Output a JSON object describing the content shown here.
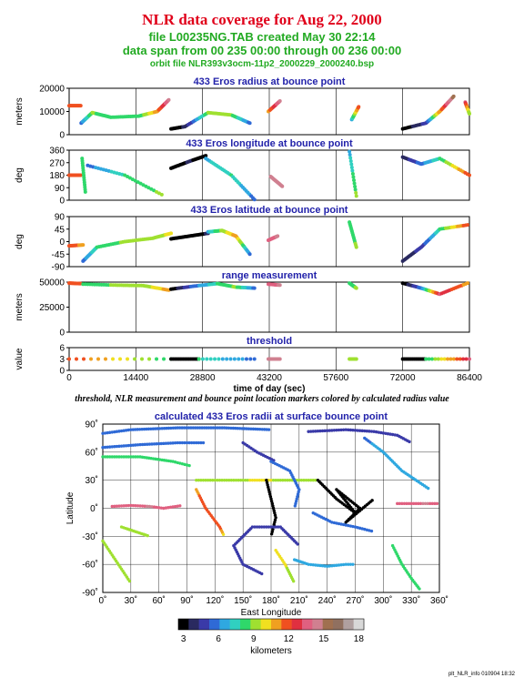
{
  "header": {
    "title": "NLR data coverage for Aug 22, 2000",
    "file_line": "file L00235NG.TAB created May 30 22:14",
    "span_line": "data span from 00 235 00:00 through 00 236 00:00",
    "orbit_line": "orbit file NLR393v3ocm-11p2_2000229_2000240.bsp",
    "title_color": "#e0001a",
    "subtitle_color": "#22aa22",
    "panel_title_color": "#2222aa"
  },
  "note": "threshold, NLR measurement and bounce point location markers colored by calculated radius value",
  "footer": "plt_NLR_info 010904 18:32",
  "chart_data": [
    {
      "type": "scatter",
      "title": "433 Eros radius at bounce point",
      "ylabel": "meters",
      "ylim": [
        0,
        20000
      ],
      "yticks": [
        0,
        10000,
        20000
      ],
      "ytick_labels": [
        "0",
        "10000",
        "20000"
      ],
      "xlim": [
        0,
        86400
      ],
      "segments": [
        {
          "x": [
            0,
            2500
          ],
          "y": [
            12500,
            12500
          ],
          "r": [
            12,
            12
          ]
        },
        {
          "x": [
            2600,
            5000,
            9000,
            15000,
            19000,
            21500
          ],
          "y": [
            5000,
            9500,
            7500,
            8000,
            10000,
            15000
          ],
          "r": [
            6,
            9,
            8,
            8,
            11,
            14
          ]
        },
        {
          "x": [
            22000,
            25000,
            30000,
            35000,
            39000
          ],
          "y": [
            2500,
            3500,
            9500,
            8500,
            5000
          ],
          "r": [
            3,
            4,
            9,
            9,
            6
          ]
        },
        {
          "x": [
            43000,
            45500
          ],
          "y": [
            10000,
            14500
          ],
          "r": [
            11,
            14
          ]
        },
        {
          "x": [
            61000,
            62500
          ],
          "y": [
            6500,
            12000
          ],
          "r": [
            7,
            12
          ]
        },
        {
          "x": [
            72000,
            77000,
            80000,
            83000
          ],
          "y": [
            2500,
            5000,
            10000,
            16500
          ],
          "r": [
            3,
            5,
            11,
            15
          ]
        },
        {
          "x": [
            85500,
            86400
          ],
          "y": [
            14000,
            9000
          ],
          "r": [
            13,
            9
          ]
        }
      ]
    },
    {
      "type": "scatter",
      "title": "433 Eros longitude at bounce point",
      "ylabel": "deg",
      "ylim": [
        0,
        360
      ],
      "yticks": [
        0,
        90,
        180,
        270,
        360
      ],
      "ytick_labels": [
        "0",
        "90",
        "180",
        "270",
        "360"
      ],
      "xlim": [
        0,
        86400
      ],
      "segments": [
        {
          "x": [
            0,
            2500
          ],
          "y": [
            180,
            180
          ],
          "r": [
            12,
            12
          ]
        },
        {
          "x": [
            2800,
            3500
          ],
          "y": [
            300,
            60
          ],
          "r": [
            8,
            8
          ]
        },
        {
          "x": [
            4000,
            12000,
            20000
          ],
          "y": [
            250,
            180,
            40
          ],
          "r": [
            6,
            8,
            9
          ]
        },
        {
          "x": [
            22000,
            26000,
            29500
          ],
          "y": [
            230,
            280,
            320
          ],
          "r": [
            3,
            4,
            3
          ]
        },
        {
          "x": [
            29500,
            35000,
            40000
          ],
          "y": [
            300,
            180,
            5
          ],
          "r": [
            7,
            8,
            6
          ]
        },
        {
          "x": [
            43500,
            46000
          ],
          "y": [
            170,
            100
          ],
          "r": [
            14,
            14
          ]
        },
        {
          "x": [
            60500,
            62000
          ],
          "y": [
            350,
            30
          ],
          "r": [
            7,
            9
          ]
        },
        {
          "x": [
            72000,
            76000,
            80000,
            86400
          ],
          "y": [
            310,
            260,
            300,
            180
          ],
          "r": [
            4,
            6,
            8,
            12
          ]
        }
      ]
    },
    {
      "type": "scatter",
      "title": "433 Eros latitude at bounce point",
      "ylabel": "deg",
      "ylim": [
        -90,
        90
      ],
      "yticks": [
        -90,
        -45,
        0,
        45,
        90
      ],
      "ytick_labels": [
        "-90",
        "-45",
        "0",
        "45",
        "90"
      ],
      "xlim": [
        0,
        86400
      ],
      "segments": [
        {
          "x": [
            0,
            3000
          ],
          "y": [
            -15,
            -12
          ],
          "r": [
            12,
            11
          ]
        },
        {
          "x": [
            3000,
            6000,
            12000,
            18000,
            22000
          ],
          "y": [
            -70,
            -20,
            0,
            12,
            30
          ],
          "r": [
            6,
            8,
            9,
            9,
            10
          ]
        },
        {
          "x": [
            22000,
            26000,
            30000
          ],
          "y": [
            10,
            20,
            30
          ],
          "r": [
            3,
            3,
            4
          ]
        },
        {
          "x": [
            30000,
            33000,
            36000,
            39000
          ],
          "y": [
            35,
            40,
            20,
            -45
          ],
          "r": [
            7,
            9,
            11,
            6
          ]
        },
        {
          "x": [
            43000,
            45000
          ],
          "y": [
            5,
            20
          ],
          "r": [
            13,
            14
          ]
        },
        {
          "x": [
            60500,
            62000
          ],
          "y": [
            70,
            -20
          ],
          "r": [
            8,
            9
          ]
        },
        {
          "x": [
            72000,
            76000,
            80000,
            86000
          ],
          "y": [
            -70,
            -20,
            45,
            60
          ],
          "r": [
            4,
            5,
            8,
            12
          ]
        }
      ]
    },
    {
      "type": "scatter",
      "title": "range measurement",
      "ylabel": "meters",
      "ylim": [
        0,
        50000
      ],
      "yticks": [
        0,
        25000,
        50000
      ],
      "ytick_labels": [
        "0",
        "25000",
        "50000"
      ],
      "xlim": [
        0,
        86400
      ],
      "segments": [
        {
          "x": [
            0,
            2500
          ],
          "y": [
            49000,
            48500
          ],
          "r": [
            12,
            12
          ]
        },
        {
          "x": [
            3000,
            10000,
            16000,
            21500
          ],
          "y": [
            48000,
            47000,
            46500,
            42000
          ],
          "r": [
            8,
            9,
            9,
            11
          ]
        },
        {
          "x": [
            22000,
            27000,
            32000,
            36000,
            40000
          ],
          "y": [
            43000,
            46000,
            48500,
            45000,
            44000
          ],
          "r": [
            3,
            6,
            8,
            9,
            6
          ]
        },
        {
          "x": [
            43000,
            45500
          ],
          "y": [
            48000,
            47000
          ],
          "r": [
            13,
            14
          ]
        },
        {
          "x": [
            60500,
            62000
          ],
          "y": [
            49000,
            44000
          ],
          "r": [
            8,
            9
          ]
        },
        {
          "x": [
            72000,
            76000,
            80000,
            86000
          ],
          "y": [
            49000,
            44000,
            38000,
            49000
          ],
          "r": [
            3,
            6,
            13,
            11
          ]
        }
      ]
    },
    {
      "type": "scatter",
      "title": "threshold",
      "ylabel": "value",
      "ylim": [
        0,
        6
      ],
      "yticks": [
        0,
        3,
        6
      ],
      "ytick_labels": [
        "0",
        "3",
        "6"
      ],
      "xlim": [
        0,
        86400
      ],
      "xlabel": "time of day (sec)",
      "xticks": [
        0,
        14400,
        28800,
        43200,
        57600,
        72000,
        86400
      ],
      "xtick_labels": [
        "0",
        "14400",
        "28800",
        "43200",
        "57600",
        "72000",
        "86400"
      ],
      "segments": [
        {
          "x": [
            0,
            22000
          ],
          "y": [
            3,
            3
          ],
          "r": [
            12,
            8
          ]
        },
        {
          "x": [
            22000,
            28000
          ],
          "y": [
            3,
            3
          ],
          "r": [
            3,
            3
          ]
        },
        {
          "x": [
            28000,
            40000
          ],
          "y": [
            3,
            3
          ],
          "r": [
            8,
            6
          ]
        },
        {
          "x": [
            43000,
            45500
          ],
          "y": [
            3,
            3
          ],
          "r": [
            14,
            14
          ]
        },
        {
          "x": [
            60500,
            62000
          ],
          "y": [
            3,
            3
          ],
          "r": [
            9,
            9
          ]
        },
        {
          "x": [
            72000,
            77000
          ],
          "y": [
            3,
            3
          ],
          "r": [
            3,
            3
          ]
        },
        {
          "x": [
            77000,
            86400
          ],
          "y": [
            3,
            3
          ],
          "r": [
            8,
            13
          ]
        }
      ]
    },
    {
      "type": "scatter",
      "title": "calculated 433 Eros radii at surface bounce point",
      "xlabel": "East Longitude",
      "ylabel": "Latitude",
      "xlim": [
        0,
        360
      ],
      "ylim": [
        -90,
        90
      ],
      "xticks": [
        0,
        30,
        60,
        90,
        120,
        150,
        180,
        210,
        240,
        270,
        300,
        330,
        360
      ],
      "xtick_labels": [
        "0˚",
        "30˚",
        "60˚",
        "90˚",
        "120˚",
        "150˚",
        "180˚",
        "210˚",
        "240˚",
        "270˚",
        "300˚",
        "330˚",
        "360˚"
      ],
      "yticks": [
        -90,
        -60,
        -30,
        0,
        30,
        60,
        90
      ],
      "ytick_labels": [
        "-90˚",
        "-60˚",
        "-30˚",
        "0˚",
        "30˚",
        "60˚",
        "90˚"
      ],
      "segments": [
        {
          "x": [
            0,
            30,
            80,
            130,
            180
          ],
          "y": [
            80,
            84,
            86,
            86,
            84
          ],
          "r": [
            6,
            6,
            6,
            6,
            6
          ]
        },
        {
          "x": [
            0,
            40,
            80,
            110
          ],
          "y": [
            65,
            68,
            70,
            70
          ],
          "r": [
            6,
            6,
            6,
            6
          ]
        },
        {
          "x": [
            0,
            40,
            75,
            95
          ],
          "y": [
            55,
            55,
            50,
            45
          ],
          "r": [
            8,
            8,
            8,
            8
          ]
        },
        {
          "x": [
            0,
            10,
            20,
            30
          ],
          "y": [
            -35,
            -50,
            -65,
            -80
          ],
          "r": [
            9,
            9,
            9,
            9
          ]
        },
        {
          "x": [
            10,
            30,
            50,
            65,
            85
          ],
          "y": [
            2,
            3,
            2,
            0,
            3
          ],
          "r": [
            13,
            13,
            14,
            13,
            13
          ]
        },
        {
          "x": [
            100,
            130,
            170,
            200,
            230
          ],
          "y": [
            30,
            30,
            30,
            30,
            30
          ],
          "r": [
            9,
            9,
            10,
            9,
            9
          ]
        },
        {
          "x": [
            230,
            250,
            270,
            250,
            275,
            260,
            290
          ],
          "y": [
            30,
            10,
            -5,
            20,
            0,
            -15,
            10
          ],
          "r": [
            3,
            3,
            3,
            3,
            3,
            3,
            3
          ]
        },
        {
          "x": [
            150,
            165,
            185
          ],
          "y": [
            70,
            60,
            50
          ],
          "r": [
            5,
            5,
            5
          ]
        },
        {
          "x": [
            180,
            200,
            210,
            205
          ],
          "y": [
            50,
            40,
            20,
            0
          ],
          "r": [
            6,
            6,
            6,
            6
          ]
        },
        {
          "x": [
            175,
            180,
            185,
            180
          ],
          "y": [
            30,
            10,
            -10,
            -30
          ],
          "r": [
            3,
            3,
            3,
            3
          ]
        },
        {
          "x": [
            225,
            245,
            270,
            290
          ],
          "y": [
            -5,
            -15,
            -20,
            -25
          ],
          "r": [
            6,
            6,
            6,
            6
          ]
        },
        {
          "x": [
            205,
            220,
            240,
            260,
            270
          ],
          "y": [
            -55,
            -60,
            -62,
            -60,
            -60
          ],
          "r": [
            7,
            7,
            7,
            7,
            7
          ]
        },
        {
          "x": [
            170,
            150,
            140,
            160,
            190,
            210
          ],
          "y": [
            -70,
            -60,
            -40,
            -20,
            -20,
            -40
          ],
          "r": [
            5,
            5,
            5,
            5,
            5,
            5
          ]
        },
        {
          "x": [
            310,
            320,
            330,
            340
          ],
          "y": [
            -40,
            -60,
            -75,
            -88
          ],
          "r": [
            8,
            8,
            8,
            8
          ]
        },
        {
          "x": [
            280,
            300,
            320,
            350
          ],
          "y": [
            75,
            60,
            40,
            20
          ],
          "r": [
            6,
            7,
            7,
            7
          ]
        },
        {
          "x": [
            315,
            330,
            345,
            360
          ],
          "y": [
            5,
            5,
            5,
            5
          ],
          "r": [
            13,
            13,
            14,
            13
          ]
        },
        {
          "x": [
            220,
            260,
            290,
            315,
            330
          ],
          "y": [
            82,
            84,
            82,
            78,
            70
          ],
          "r": [
            5,
            5,
            5,
            5,
            5
          ]
        },
        {
          "x": [
            185,
            195,
            200,
            205
          ],
          "y": [
            -45,
            -60,
            -70,
            -80
          ],
          "r": [
            10,
            10,
            9,
            9
          ]
        },
        {
          "x": [
            100,
            110,
            125,
            130
          ],
          "y": [
            20,
            0,
            -20,
            -30
          ],
          "r": [
            11,
            12,
            12,
            10
          ]
        },
        {
          "x": [
            20,
            35,
            50
          ],
          "y": [
            -20,
            -25,
            -30
          ],
          "r": [
            9,
            9,
            9
          ]
        }
      ]
    }
  ],
  "colorbar": {
    "label": "kilometers",
    "ticks": [
      3,
      6,
      9,
      12,
      15,
      18
    ],
    "tick_labels": [
      "3",
      "6",
      "9",
      "12",
      "15",
      "18"
    ],
    "range": [
      3,
      18
    ],
    "colors": [
      "#000000",
      "#2a2a60",
      "#3a3aa8",
      "#2f6ad6",
      "#2fa8e0",
      "#30d0c0",
      "#2fd86a",
      "#9fe030",
      "#f0e020",
      "#f0a020",
      "#f05020",
      "#e03040",
      "#e06080",
      "#d08090",
      "#a07050",
      "#907060",
      "#b0a0a0",
      "#d8d8d8"
    ]
  }
}
